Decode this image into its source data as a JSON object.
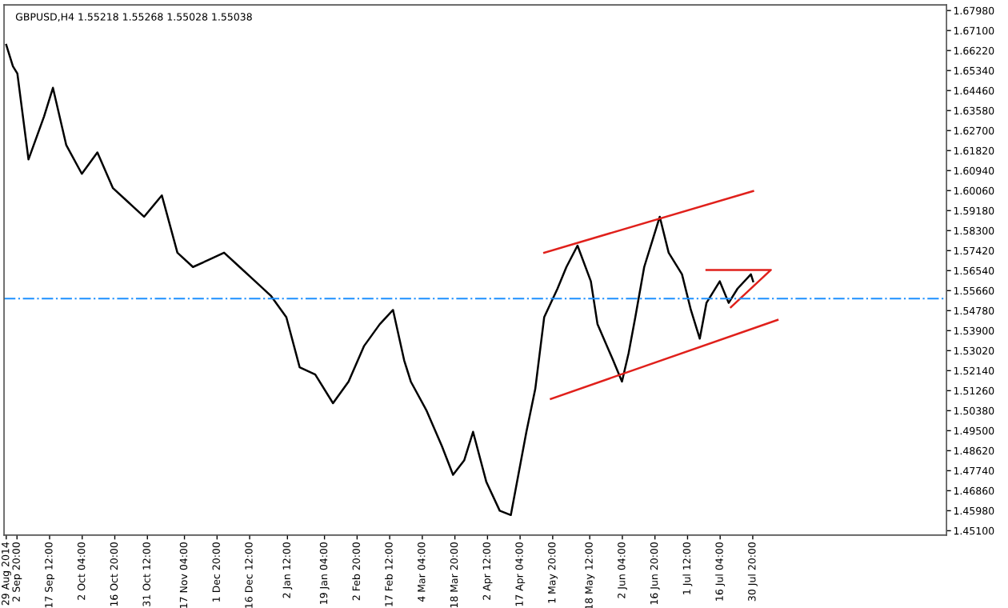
{
  "chart_data": {
    "type": "line",
    "title": "GBPUSD,H4 1.55218 1.55268 1.55028 1.55038",
    "series": [
      {
        "color": "#000000",
        "x": [
          "2014-08-29",
          "2014-09-01",
          "2014-09-03",
          "2014-09-08",
          "2014-09-15",
          "2014-09-19",
          "2014-09-25",
          "2014-10-02",
          "2014-10-09",
          "2014-10-16",
          "2014-10-23",
          "2014-10-30",
          "2014-11-07",
          "2014-11-14",
          "2014-11-21",
          "2014-11-28",
          "2014-12-05",
          "2014-12-12",
          "2014-12-19",
          "2014-12-26",
          "2015-01-02",
          "2015-01-08",
          "2015-01-15",
          "2015-01-23",
          "2015-01-30",
          "2015-02-06",
          "2015-02-13",
          "2015-02-19",
          "2015-02-24",
          "2015-02-27",
          "2015-03-06",
          "2015-03-13",
          "2015-03-18",
          "2015-03-23",
          "2015-03-27",
          "2015-04-02",
          "2015-04-08",
          "2015-04-13",
          "2015-04-20",
          "2015-04-24",
          "2015-04-28",
          "2015-05-04",
          "2015-05-08",
          "2015-05-13",
          "2015-05-19",
          "2015-05-22",
          "2015-05-29",
          "2015-06-02",
          "2015-06-05",
          "2015-06-08",
          "2015-06-12",
          "2015-06-16",
          "2015-06-19",
          "2015-06-23",
          "2015-06-29",
          "2015-07-03",
          "2015-07-07",
          "2015-07-10",
          "2015-07-16",
          "2015-07-20",
          "2015-07-24",
          "2015-07-30",
          "2015-07-31"
        ],
        "values": [
          1.6647,
          1.6553,
          1.6521,
          1.6143,
          1.6332,
          1.6458,
          1.6206,
          1.608,
          1.6174,
          1.6017,
          1.5954,
          1.5891,
          1.5985,
          1.5733,
          1.567,
          1.5701,
          1.5733,
          1.567,
          1.5607,
          1.5544,
          1.5449,
          1.5229,
          1.5197,
          1.5071,
          1.5166,
          1.5323,
          1.5418,
          1.5481,
          1.526,
          1.5166,
          1.504,
          1.4882,
          1.4756,
          1.4819,
          1.4945,
          1.4724,
          1.4598,
          1.4579,
          1.4945,
          1.5134,
          1.5449,
          1.5575,
          1.567,
          1.5764,
          1.5607,
          1.5418,
          1.526,
          1.5166,
          1.5292,
          1.5449,
          1.567,
          1.5796,
          1.5891,
          1.5733,
          1.5638,
          1.5481,
          1.5355,
          1.5512,
          1.5607,
          1.5512,
          1.5575,
          1.5638,
          1.5607
        ]
      },
      {
        "color": "#e0201b",
        "x": [
          "2015-04-28",
          "2015-07-31"
        ],
        "values": [
          1.5733,
          1.6004
        ]
      },
      {
        "color": "#e0201b",
        "x": [
          "2015-05-01",
          "2015-08-11"
        ],
        "values": [
          1.509,
          1.5437
        ]
      },
      {
        "color": "#e0201b",
        "x": [
          "2015-07-10",
          "2015-08-08",
          "2015-07-21"
        ],
        "values": [
          1.5657,
          1.5657,
          1.5493
        ]
      }
    ],
    "xlim": [
      "2014-08-28",
      "2015-10-26"
    ],
    "xticks": [
      {
        "value": "2014-08-29",
        "label": "29 Aug 2014"
      },
      {
        "value": "2014-09-02T20:00",
        "label": "2 Sep 20:00"
      },
      {
        "value": "2014-09-17T12:00",
        "label": "17 Sep 12:00"
      },
      {
        "value": "2014-10-02T04:00",
        "label": "2 Oct 04:00"
      },
      {
        "value": "2014-10-16T20:00",
        "label": "16 Oct 20:00"
      },
      {
        "value": "2014-10-31T12:00",
        "label": "31 Oct 12:00"
      },
      {
        "value": "2014-11-17T04:00",
        "label": "17 Nov 04:00"
      },
      {
        "value": "2014-12-01T20:00",
        "label": "1 Dec 20:00"
      },
      {
        "value": "2014-12-16T12:00",
        "label": "16 Dec 12:00"
      },
      {
        "value": "2015-01-02T12:00",
        "label": "2 Jan 12:00"
      },
      {
        "value": "2015-01-19T04:00",
        "label": "19 Jan 04:00"
      },
      {
        "value": "2015-02-02T20:00",
        "label": "2 Feb 20:00"
      },
      {
        "value": "2015-02-17T12:00",
        "label": "17 Feb 12:00"
      },
      {
        "value": "2015-03-04T04:00",
        "label": "4 Mar 04:00"
      },
      {
        "value": "2015-03-18T20:00",
        "label": "18 Mar 20:00"
      },
      {
        "value": "2015-04-02T12:00",
        "label": "2 Apr 12:00"
      },
      {
        "value": "2015-04-17T04:00",
        "label": "17 Apr 04:00"
      },
      {
        "value": "2015-05-01T20:00",
        "label": "1 May 20:00"
      },
      {
        "value": "2015-05-18T12:00",
        "label": "18 May 12:00"
      },
      {
        "value": "2015-06-02T04:00",
        "label": "2 Jun 04:00"
      },
      {
        "value": "2015-06-16T20:00",
        "label": "16 Jun 20:00"
      },
      {
        "value": "2015-07-01T12:00",
        "label": "1 Jul 12:00"
      },
      {
        "value": "2015-07-16T04:00",
        "label": "16 Jul 04:00"
      },
      {
        "value": "2015-07-30T20:00",
        "label": "30 Jul 20:00"
      }
    ],
    "ylim": [
      1.4491,
      1.6823
    ],
    "yticks": [
      {
        "value": 1.451,
        "label": "1.45100"
      },
      {
        "value": 1.4598,
        "label": "1.45980"
      },
      {
        "value": 1.4686,
        "label": "1.46860"
      },
      {
        "value": 1.4774,
        "label": "1.47740"
      },
      {
        "value": 1.4862,
        "label": "1.48620"
      },
      {
        "value": 1.495,
        "label": "1.49500"
      },
      {
        "value": 1.5038,
        "label": "1.50380"
      },
      {
        "value": 1.5126,
        "label": "1.51260"
      },
      {
        "value": 1.5214,
        "label": "1.52140"
      },
      {
        "value": 1.5302,
        "label": "1.53020"
      },
      {
        "value": 1.539,
        "label": "1.53900"
      },
      {
        "value": 1.5478,
        "label": "1.54780"
      },
      {
        "value": 1.5566,
        "label": "1.55660"
      },
      {
        "value": 1.5654,
        "label": "1.56540"
      },
      {
        "value": 1.5742,
        "label": "1.57420"
      },
      {
        "value": 1.583,
        "label": "1.58300"
      },
      {
        "value": 1.5918,
        "label": "1.59180"
      },
      {
        "value": 1.6006,
        "label": "1.60060"
      },
      {
        "value": 1.6094,
        "label": "1.60940"
      },
      {
        "value": 1.6182,
        "label": "1.61820"
      },
      {
        "value": 1.627,
        "label": "1.62700"
      },
      {
        "value": 1.6358,
        "label": "1.63580"
      },
      {
        "value": 1.6446,
        "label": "1.64460"
      },
      {
        "value": 1.6534,
        "label": "1.65340"
      },
      {
        "value": 1.6622,
        "label": "1.66220"
      },
      {
        "value": 1.671,
        "label": "1.67100"
      },
      {
        "value": 1.6798,
        "label": "1.67980"
      }
    ],
    "ref_lines": [
      {
        "axis": "y",
        "value": 1.5531,
        "color": "#1e90ff",
        "line_style": "dashdot"
      }
    ],
    "grid": false,
    "legend": false,
    "marker": "none",
    "line_style": "solid"
  }
}
